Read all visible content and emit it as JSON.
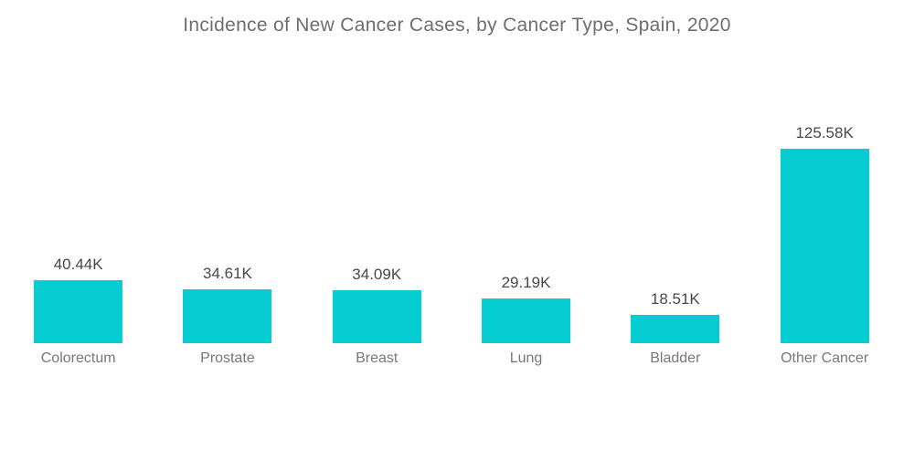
{
  "title": "Incidence of New Cancer Cases, by Cancer Type, Spain, 2020",
  "colors": {
    "bar": "#05CDD2",
    "title_text": "#6D6E71",
    "value_text": "#48484A",
    "category_text": "#77787B",
    "background": "#FFFFFF"
  },
  "chart_data": {
    "type": "bar",
    "title": "Incidence of New Cancer Cases, by Cancer Type, Spain, 2020",
    "categories": [
      "Colorectum",
      "Prostate",
      "Breast",
      "Lung",
      "Bladder",
      "Other Cancer"
    ],
    "values": [
      40.44,
      34.61,
      34.09,
      29.19,
      18.51,
      125.58
    ],
    "value_labels": [
      "40.44K",
      "34.61K",
      "34.09K",
      "29.19K",
      "18.51K",
      "125.58K"
    ],
    "unit": "K",
    "xlabel": "",
    "ylabel": "",
    "ylim": [
      0,
      130
    ],
    "grid": false,
    "legend": false,
    "axes_visible": false,
    "bar_color": "#05CDD2",
    "data_label_position": "above-bar"
  }
}
